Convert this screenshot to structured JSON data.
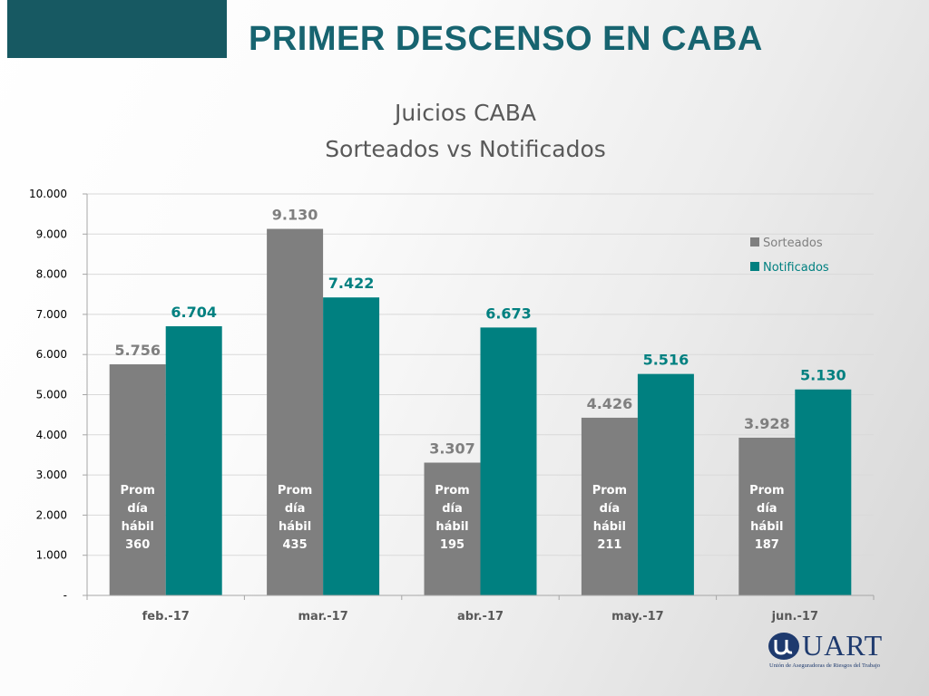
{
  "slide": {
    "title": "PRIMER DESCENSO EN CABA"
  },
  "colors": {
    "accent": "#175962",
    "title": "#176470",
    "sorteados": "#7f7f7f",
    "notificados": "#008080"
  },
  "logo": {
    "name": "UART",
    "subtitle": "Unión de Aseguradoras de Riesgos del Trabajo",
    "icon": "uart-logo-icon"
  },
  "chart_data": {
    "type": "bar",
    "title": "Juicios CABA",
    "subtitle": "Sorteados vs Notificados",
    "categories": [
      "feb.-17",
      "mar.-17",
      "abr.-17",
      "may.-17",
      "jun.-17"
    ],
    "series": [
      {
        "name": "Sorteados",
        "values": [
          5756,
          9130,
          3307,
          4426,
          3928
        ],
        "labels": [
          "5.756",
          "9.130",
          "3.307",
          "4.426",
          "3.928"
        ]
      },
      {
        "name": "Notificados",
        "values": [
          6704,
          7422,
          6673,
          5516,
          5130
        ],
        "labels": [
          "6.704",
          "7.422",
          "6.673",
          "5.516",
          "5.130"
        ]
      }
    ],
    "annotations": [
      [
        "Prom",
        "día",
        "hábil",
        "360"
      ],
      [
        "Prom",
        "día",
        "hábil",
        "435"
      ],
      [
        "Prom",
        "día",
        "hábil",
        "195"
      ],
      [
        "Prom",
        "día",
        "hábil",
        "211"
      ],
      [
        "Prom",
        "día",
        "hábil",
        "187"
      ]
    ],
    "yticks": [
      "-",
      "1.000",
      "2.000",
      "3.000",
      "4.000",
      "5.000",
      "6.000",
      "7.000",
      "8.000",
      "9.000",
      "10.000"
    ],
    "ylim": [
      0,
      10000
    ],
    "grid": true,
    "legend_position": "top-right"
  }
}
